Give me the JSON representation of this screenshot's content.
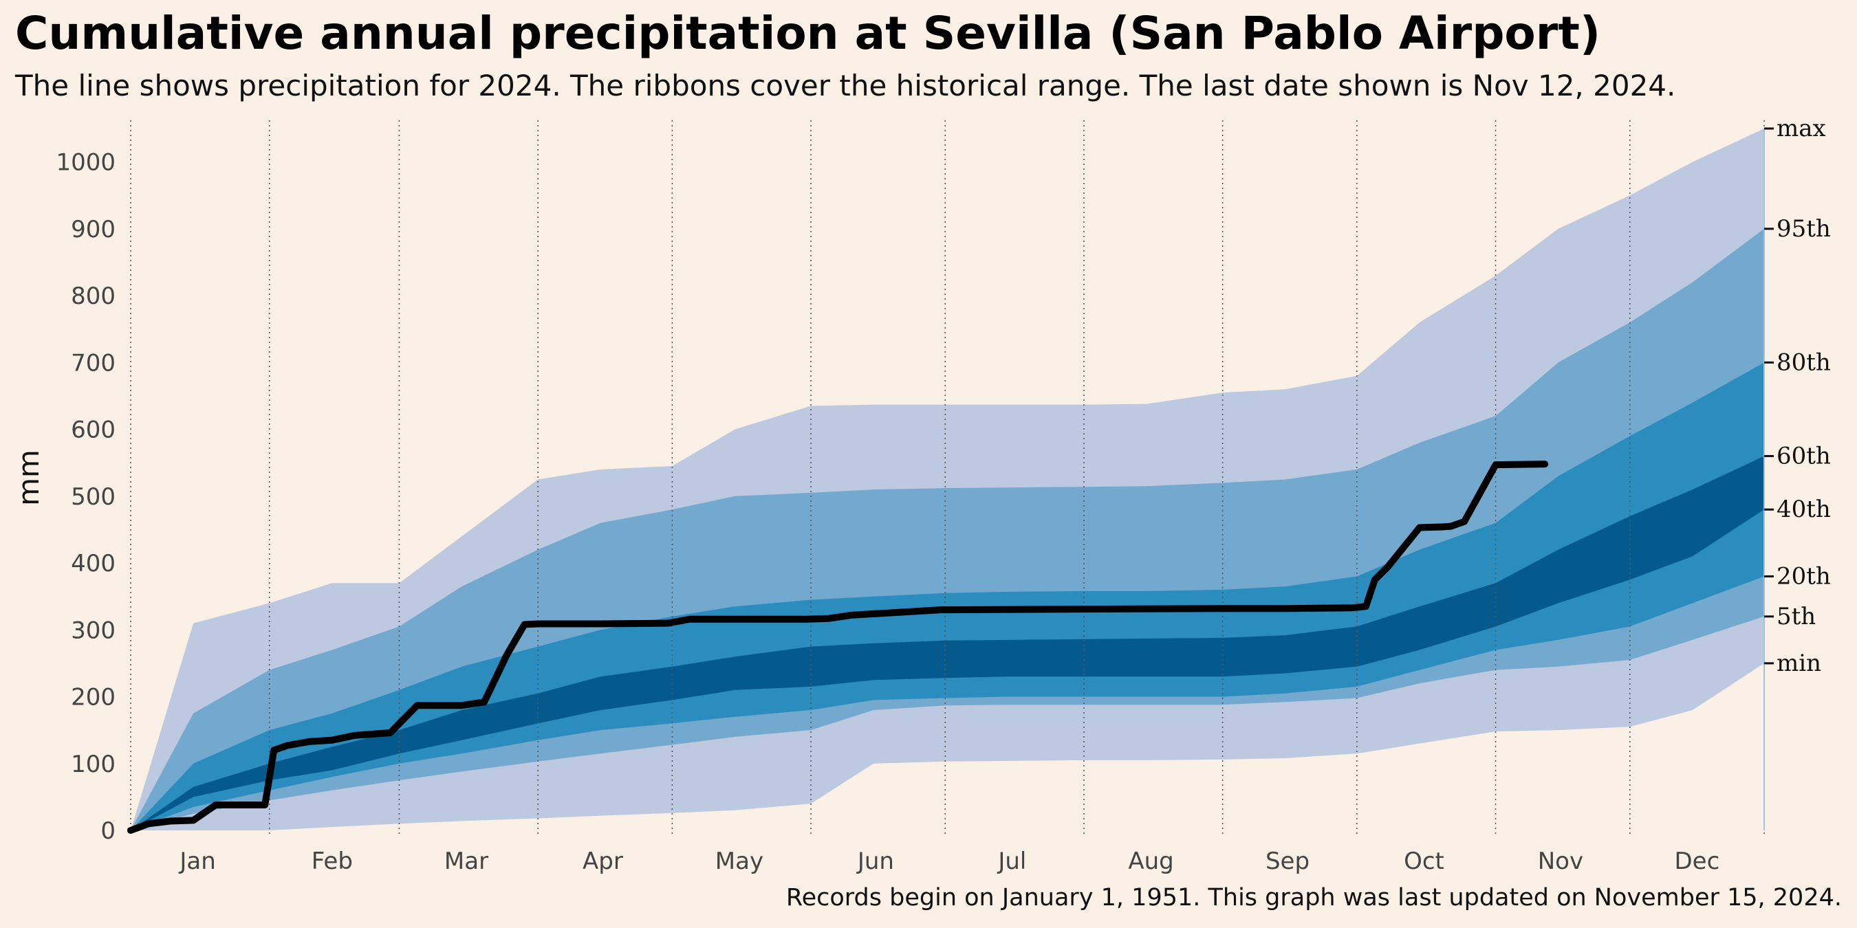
{
  "title": "Cumulative annual precipitation at Sevilla (San Pablo Airport)",
  "subtitle": "The line shows precipitation for 2024. The ribbons cover the historical range. The last date shown is Nov 12, 2024.",
  "footnote": "Records begin on January 1, 1951. This graph was last updated on November 15, 2024.",
  "colors": {
    "background": "#fbf0e6",
    "band_outer": "#bdc8e1",
    "band_mid": "#74a9cf",
    "band_inner": "#2b8cbe",
    "band_center": "#045a8d",
    "line_2024": "#000000"
  },
  "chart_data": {
    "type": "area",
    "ylabel": "mm",
    "ylim": [
      0,
      1050
    ],
    "yticks": [
      0,
      100,
      200,
      300,
      400,
      500,
      600,
      700,
      800,
      900,
      1000
    ],
    "month_labels": [
      "Jan",
      "Feb",
      "Mar",
      "Apr",
      "May",
      "Jun",
      "Jul",
      "Aug",
      "Sep",
      "Oct",
      "Nov",
      "Dec"
    ],
    "grid": "vertical dotted lines at month boundaries",
    "x": [
      "Jan 1",
      "Jan 15",
      "Feb 1",
      "Feb 15",
      "Mar 1",
      "Mar 15",
      "Apr 1",
      "Apr 15",
      "May 1",
      "May 15",
      "Jun 1",
      "Jun 15",
      "Jul 1",
      "Jul 15",
      "Aug 1",
      "Aug 15",
      "Sep 1",
      "Sep 15",
      "Oct 1",
      "Oct 15",
      "Nov 1",
      "Nov 15",
      "Dec 1",
      "Dec 15",
      "Dec 31"
    ],
    "bands": [
      {
        "name": "min",
        "values": [
          0,
          0,
          0,
          5,
          10,
          14,
          18,
          22,
          26,
          30,
          40,
          100,
          103,
          104,
          105,
          105,
          106,
          108,
          115,
          130,
          148,
          150,
          155,
          180,
          250
        ]
      },
      {
        "name": "5th",
        "values": [
          0,
          25,
          45,
          60,
          75,
          88,
          103,
          115,
          128,
          140,
          150,
          180,
          187,
          188,
          188,
          188,
          188,
          192,
          198,
          220,
          240,
          245,
          255,
          285,
          320
        ]
      },
      {
        "name": "20th",
        "values": [
          0,
          35,
          60,
          80,
          100,
          115,
          135,
          150,
          160,
          170,
          180,
          195,
          198,
          200,
          200,
          200,
          200,
          205,
          215,
          240,
          270,
          285,
          305,
          340,
          380
        ]
      },
      {
        "name": "40th",
        "values": [
          0,
          50,
          75,
          90,
          115,
          135,
          160,
          180,
          195,
          210,
          215,
          225,
          228,
          230,
          230,
          230,
          230,
          235,
          245,
          270,
          305,
          340,
          375,
          410,
          480
        ]
      },
      {
        "name": "60th",
        "values": [
          0,
          65,
          100,
          125,
          150,
          180,
          205,
          230,
          245,
          260,
          275,
          280,
          284,
          285,
          286,
          287,
          288,
          292,
          305,
          335,
          370,
          420,
          470,
          510,
          560
        ]
      },
      {
        "name": "80th",
        "values": [
          0,
          100,
          150,
          175,
          210,
          245,
          275,
          300,
          320,
          335,
          345,
          350,
          355,
          357,
          358,
          358,
          360,
          365,
          380,
          420,
          460,
          530,
          590,
          640,
          700
        ]
      },
      {
        "name": "95th",
        "values": [
          0,
          175,
          240,
          270,
          305,
          365,
          420,
          460,
          480,
          500,
          505,
          510,
          512,
          513,
          514,
          515,
          520,
          525,
          540,
          580,
          620,
          700,
          760,
          820,
          900
        ]
      },
      {
        "name": "max",
        "values": [
          0,
          310,
          340,
          370,
          370,
          440,
          525,
          540,
          545,
          600,
          635,
          637,
          637,
          637,
          637,
          638,
          655,
          660,
          680,
          760,
          830,
          900,
          950,
          1000,
          1050
        ]
      }
    ],
    "series": [
      {
        "x": [
          "Jan 1",
          "Jan 5",
          "Jan 10",
          "Jan 15",
          "Jan 20",
          "Jan 31",
          "Feb 2",
          "Feb 5",
          "Feb 10",
          "Feb 15",
          "Feb 20",
          "Feb 28",
          "Mar 5",
          "Mar 10",
          "Mar 15",
          "Mar 20",
          "Mar 25",
          "Mar 29",
          "Apr 1",
          "Apr 5",
          "Apr 15",
          "Apr 30",
          "May 5",
          "May 31",
          "Jun 5",
          "Jun 10",
          "Jun 30",
          "Jul 31",
          "Aug 31",
          "Sep 15",
          "Sep 30",
          "Oct 3",
          "Oct 5",
          "Oct 8",
          "Oct 15",
          "Oct 20",
          "Oct 22",
          "Oct 25",
          "Nov 1",
          "Nov 12"
        ],
        "values": [
          0,
          10,
          14,
          15,
          38,
          38,
          120,
          127,
          133,
          135,
          142,
          146,
          187,
          187,
          187,
          192,
          262,
          308,
          309,
          309,
          309,
          310,
          316,
          316,
          317,
          322,
          330,
          331,
          332,
          332,
          333,
          335,
          375,
          395,
          453,
          454,
          455,
          462,
          547,
          548
        ]
      }
    ],
    "right_labels": [
      {
        "label": "max",
        "value": 1050
      },
      {
        "label": "95th",
        "value": 900
      },
      {
        "label": "80th",
        "value": 700
      },
      {
        "label": "60th",
        "value": 560
      },
      {
        "label": "40th",
        "value": 480
      },
      {
        "label": "20th",
        "value": 380
      },
      {
        "label": "5th",
        "value": 320
      },
      {
        "label": "min",
        "value": 250
      }
    ]
  }
}
